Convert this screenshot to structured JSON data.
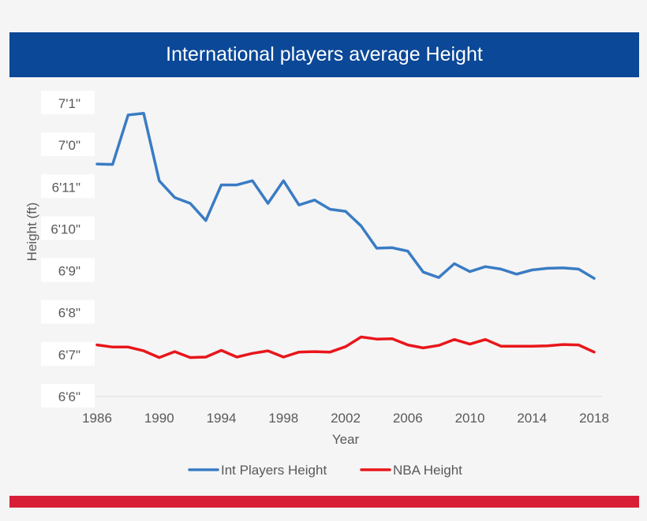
{
  "header": {
    "title": "International players average Height"
  },
  "colors": {
    "title_bar": "#0b4897",
    "bottom_bar": "#d81e37",
    "series_int": "#3a7cc4",
    "series_nba": "#e8161b"
  },
  "chart_data": {
    "type": "line",
    "title": "International players average Height",
    "xlabel": "Year",
    "ylabel": "Height (ft)",
    "xlim": [
      1986,
      2018
    ],
    "ylim": [
      78,
      85
    ],
    "x_ticks": [
      1986,
      1990,
      1994,
      1998,
      2002,
      2006,
      2010,
      2014,
      2018
    ],
    "y_ticks": [
      {
        "value": 78,
        "label": "6'6\""
      },
      {
        "value": 79,
        "label": "6'7\""
      },
      {
        "value": 80,
        "label": "6'8\""
      },
      {
        "value": 81,
        "label": "6'9\""
      },
      {
        "value": 82,
        "label": "6'10\""
      },
      {
        "value": 83,
        "label": "6'11\""
      },
      {
        "value": 84,
        "label": "7'0\""
      },
      {
        "value": 85,
        "label": "7'1\""
      }
    ],
    "grid": false,
    "legend_position": "bottom",
    "x": [
      1986,
      1987,
      1988,
      1989,
      1990,
      1991,
      1992,
      1993,
      1994,
      1995,
      1996,
      1997,
      1998,
      1999,
      2000,
      2001,
      2002,
      2003,
      2004,
      2005,
      2006,
      2007,
      2008,
      2009,
      2010,
      2011,
      2012,
      2013,
      2014,
      2015,
      2016,
      2017,
      2018
    ],
    "series": [
      {
        "name": "Int Players Height",
        "values": [
          83.55,
          83.54,
          84.72,
          84.76,
          83.15,
          82.75,
          82.61,
          82.2,
          83.05,
          83.05,
          83.15,
          82.61,
          83.15,
          82.57,
          82.69,
          82.47,
          82.42,
          82.07,
          81.54,
          81.55,
          81.47,
          80.97,
          80.84,
          81.17,
          80.98,
          81.1,
          81.04,
          80.92,
          81.02,
          81.06,
          81.07,
          81.04,
          80.82
        ]
      },
      {
        "name": "NBA Height",
        "values": [
          79.23,
          79.18,
          79.18,
          79.09,
          78.93,
          79.07,
          78.93,
          78.94,
          79.1,
          78.94,
          79.03,
          79.09,
          78.94,
          79.06,
          79.07,
          79.06,
          79.19,
          79.42,
          79.37,
          79.38,
          79.23,
          79.16,
          79.22,
          79.36,
          79.25,
          79.36,
          79.2,
          79.2,
          79.2,
          79.21,
          79.24,
          79.23,
          79.06
        ]
      }
    ]
  }
}
